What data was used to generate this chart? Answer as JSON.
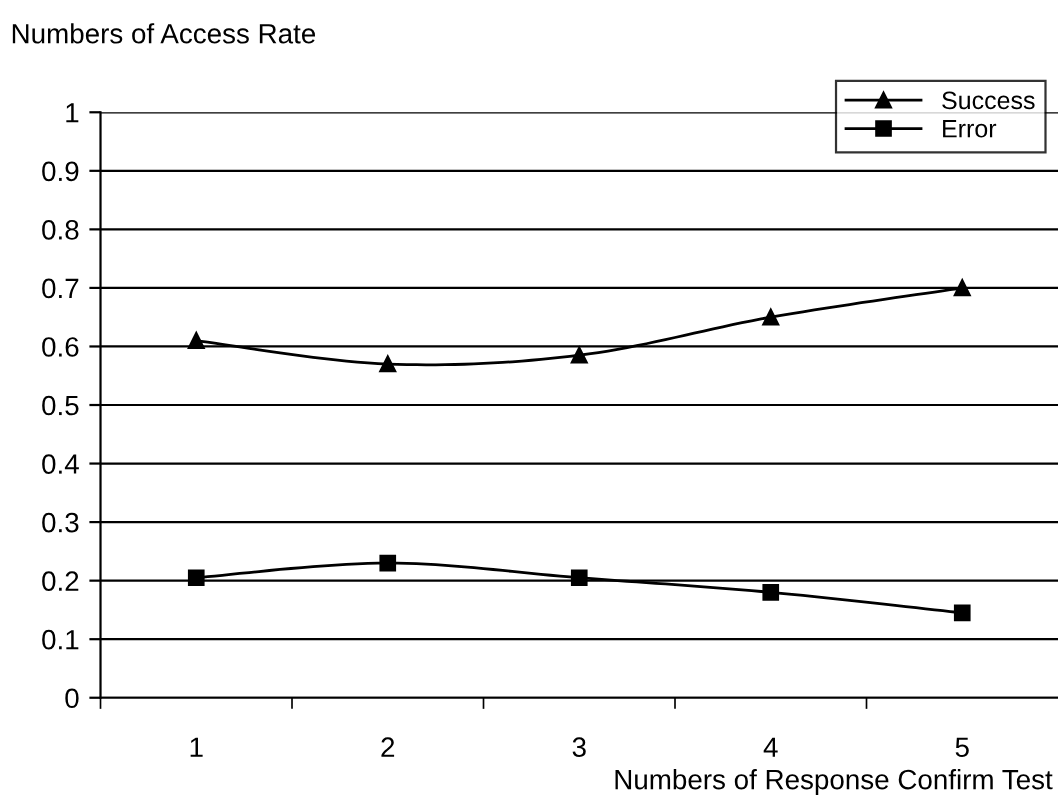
{
  "chart_data": {
    "type": "line",
    "ylabel": "Numbers of Access Rate",
    "xlabel": "Numbers of Response Confirm Test",
    "categories": [
      "1",
      "2",
      "3",
      "4",
      "5"
    ],
    "series": [
      {
        "name": "Success",
        "color": "#000000",
        "marker": "triangle",
        "values": [
          0.61,
          0.57,
          0.585,
          0.65,
          0.7
        ]
      },
      {
        "name": "Error",
        "color": "#000000",
        "marker": "square",
        "values": [
          0.205,
          0.23,
          0.205,
          0.18,
          0.145
        ]
      }
    ],
    "ylim": [
      0,
      1
    ],
    "yticks": [
      0,
      0.1,
      0.2,
      0.3,
      0.4,
      0.5,
      0.6,
      0.7,
      0.8,
      0.9,
      1
    ],
    "grid": "y",
    "legend": "top right",
    "line_style": "solid"
  }
}
